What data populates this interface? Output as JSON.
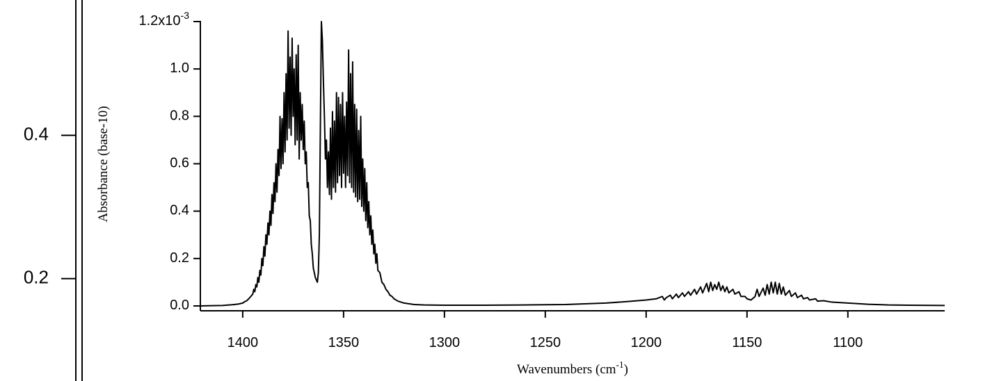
{
  "chart_data": [
    {
      "type": "line",
      "ylim": [
        0.057,
        0.589
      ],
      "yticks": [
        0.2,
        0.4
      ]
    },
    {
      "type": "line",
      "color": "#000000",
      "xlabel": "Wavenumbers (cm^-1)",
      "ylabel": "Absorbance (base-10)",
      "xlim": [
        1421,
        1052
      ],
      "ylim": [
        0,
        1.2
      ],
      "xticks": [
        1400,
        1350,
        1300,
        1250,
        1200,
        1150,
        1100
      ],
      "yticks": [
        {
          "value": 0,
          "label": "0.0"
        },
        0.2,
        0.4,
        0.6,
        0.8,
        {
          "value": 1,
          "label": "1.0"
        },
        {
          "value": 1.2,
          "label": "1.2x10^-3"
        }
      ],
      "x": [
        1421,
        1415,
        1410,
        1405,
        1402,
        1400,
        1399,
        1398,
        1397,
        1396,
        1395,
        1394.5,
        1394,
        1393.5,
        1393,
        1392.5,
        1392,
        1391.5,
        1391,
        1390.5,
        1390,
        1389.5,
        1389,
        1388.5,
        1388,
        1387.5,
        1387,
        1386.5,
        1386,
        1385.5,
        1385,
        1384.5,
        1384,
        1383.5,
        1383,
        1382.5,
        1382,
        1381.5,
        1381,
        1380.5,
        1380,
        1379.5,
        1379,
        1378.5,
        1378,
        1377.5,
        1377,
        1376.5,
        1376,
        1375.5,
        1375,
        1374.5,
        1374,
        1373.5,
        1373,
        1372.5,
        1372,
        1371.5,
        1371,
        1370.5,
        1370,
        1369.5,
        1369,
        1368.5,
        1368,
        1367.5,
        1367,
        1366.5,
        1366,
        1365.5,
        1365,
        1364.5,
        1364,
        1363.5,
        1363,
        1362.5,
        1362,
        1361.5,
        1361,
        1360.5,
        1360,
        1359.5,
        1359,
        1358.5,
        1358,
        1357.5,
        1357,
        1356.5,
        1356,
        1355.5,
        1355,
        1354.5,
        1354,
        1353.5,
        1353,
        1352.5,
        1352,
        1351.5,
        1351,
        1350.5,
        1350,
        1349.5,
        1349,
        1348.5,
        1348,
        1347.5,
        1347,
        1346.5,
        1346,
        1345.5,
        1345,
        1344.5,
        1344,
        1343.5,
        1343,
        1342.5,
        1342,
        1341.5,
        1341,
        1340.5,
        1340,
        1339.5,
        1339,
        1338.5,
        1338,
        1337.5,
        1337,
        1336.5,
        1336,
        1335.5,
        1335,
        1334.5,
        1334,
        1333.5,
        1333,
        1332,
        1331,
        1330,
        1329,
        1328,
        1327,
        1326,
        1325,
        1323,
        1320,
        1315,
        1310,
        1300,
        1280,
        1260,
        1240,
        1220,
        1210,
        1200,
        1195,
        1192,
        1191,
        1190,
        1188,
        1187,
        1185,
        1184,
        1182,
        1181,
        1179,
        1178,
        1176,
        1175,
        1173,
        1172,
        1170,
        1169,
        1168,
        1167,
        1166,
        1165,
        1164,
        1163,
        1162,
        1161,
        1160,
        1159,
        1157,
        1156,
        1154,
        1153,
        1151,
        1150,
        1148,
        1146,
        1145,
        1144,
        1142,
        1141,
        1140,
        1139,
        1138,
        1137,
        1136,
        1135,
        1134,
        1133,
        1132,
        1131,
        1129,
        1128,
        1126,
        1125,
        1123,
        1122,
        1120,
        1119,
        1116,
        1115,
        1112,
        1108,
        1100,
        1090,
        1080,
        1070,
        1052
      ],
      "values": [
        0,
        0.001,
        0.002,
        0.005,
        0.008,
        0.012,
        0.018,
        0.022,
        0.03,
        0.04,
        0.05,
        0.07,
        0.06,
        0.09,
        0.08,
        0.12,
        0.1,
        0.15,
        0.13,
        0.2,
        0.17,
        0.25,
        0.21,
        0.3,
        0.26,
        0.35,
        0.3,
        0.4,
        0.34,
        0.47,
        0.39,
        0.52,
        0.44,
        0.6,
        0.48,
        0.66,
        0.55,
        0.8,
        0.58,
        0.79,
        0.6,
        0.9,
        0.65,
        0.98,
        0.7,
        1.16,
        0.75,
        1.05,
        0.72,
        1.13,
        0.8,
        1.0,
        0.68,
        1.06,
        0.7,
        1.1,
        0.62,
        0.9,
        0.7,
        0.85,
        0.66,
        0.78,
        0.6,
        0.65,
        0.5,
        0.52,
        0.38,
        0.36,
        0.26,
        0.22,
        0.16,
        0.14,
        0.12,
        0.11,
        0.1,
        0.14,
        0.3,
        0.75,
        1.2,
        1.12,
        0.95,
        0.8,
        0.62,
        0.7,
        0.5,
        0.65,
        0.47,
        0.75,
        0.45,
        0.82,
        0.5,
        0.78,
        0.48,
        0.9,
        0.52,
        0.88,
        0.55,
        0.85,
        0.5,
        0.9,
        0.56,
        0.8,
        0.5,
        0.86,
        0.55,
        1.08,
        0.52,
        0.98,
        0.5,
        1.03,
        0.48,
        0.85,
        0.46,
        0.83,
        0.44,
        0.74,
        0.45,
        0.8,
        0.42,
        0.62,
        0.4,
        0.58,
        0.36,
        0.52,
        0.33,
        0.44,
        0.3,
        0.38,
        0.26,
        0.32,
        0.22,
        0.26,
        0.18,
        0.22,
        0.15,
        0.14,
        0.1,
        0.09,
        0.07,
        0.06,
        0.045,
        0.04,
        0.03,
        0.02,
        0.012,
        0.006,
        0.004,
        0.003,
        0.003,
        0.004,
        0.006,
        0.012,
        0.018,
        0.025,
        0.03,
        0.04,
        0.025,
        0.035,
        0.045,
        0.03,
        0.05,
        0.035,
        0.055,
        0.04,
        0.06,
        0.045,
        0.07,
        0.05,
        0.08,
        0.055,
        0.095,
        0.06,
        0.1,
        0.065,
        0.09,
        0.07,
        0.1,
        0.065,
        0.085,
        0.06,
        0.08,
        0.055,
        0.07,
        0.05,
        0.06,
        0.04,
        0.04,
        0.03,
        0.025,
        0.04,
        0.07,
        0.04,
        0.075,
        0.045,
        0.09,
        0.05,
        0.1,
        0.055,
        0.1,
        0.05,
        0.095,
        0.05,
        0.08,
        0.045,
        0.065,
        0.04,
        0.055,
        0.035,
        0.045,
        0.03,
        0.035,
        0.025,
        0.03,
        0.02,
        0.022,
        0.016,
        0.012,
        0.007,
        0.004,
        0.003,
        0.002
      ]
    }
  ]
}
